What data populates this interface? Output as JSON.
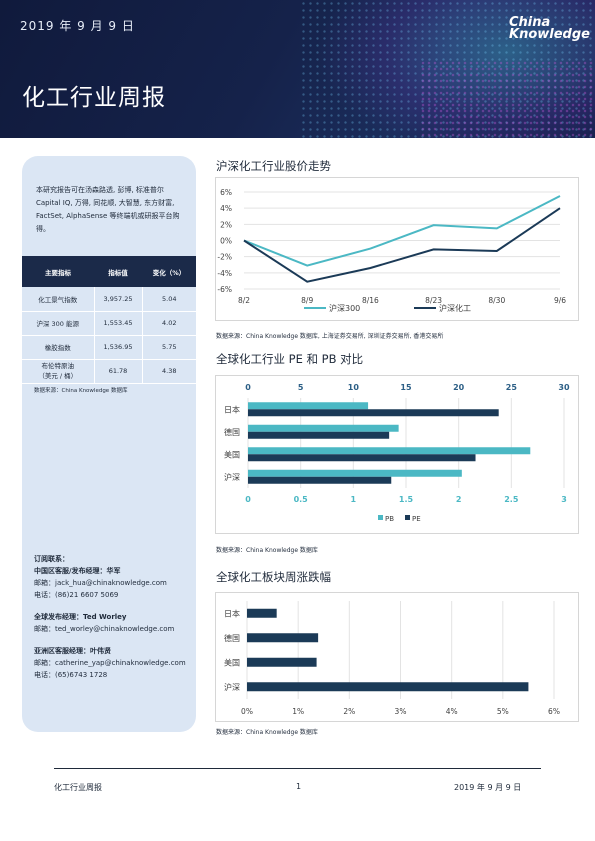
{
  "header": {
    "date": "2019 年 9 月 9 日",
    "title": "化工行业周报",
    "logo_line1": "China",
    "logo_line2": "Knowledge"
  },
  "sidebar": {
    "intro": "本研究报告可在汤森路透, 彭博, 标准普尔 Capital IQ, 万得, 同花顺, 大智慧, 东方财富, FactSet, AlphaSense 等终端机或研报平台购得。",
    "table": {
      "headers": [
        "主要指标",
        "指标值",
        "变化（%）"
      ],
      "rows": [
        {
          "name": "化工景气指数",
          "value": "3,957.25",
          "change": "5.04"
        },
        {
          "name": "沪深 300 能源",
          "value": "1,553.45",
          "change": "4.02"
        },
        {
          "name": "橡胶指数",
          "value": "1,536.95",
          "change": "5.75"
        },
        {
          "name": "布伦特原油",
          "name2": "（美元 / 桶）",
          "value": "61.78",
          "change": "4.38"
        }
      ]
    },
    "table_source": "数据来源：China Knowledge 数据库",
    "contacts": {
      "subscribe": "订阅联系：",
      "china_head": "中国区客服/发布经理：华军",
      "china_email": "邮箱：jack_hua@chinaknowledge.com",
      "china_phone": "电话：(86)21 6607 5069",
      "global_head": "全球发布经理：Ted Worley",
      "global_email": "邮箱：ted_worley@chinaknowledge.com",
      "asia_head": "亚洲区客服经理：叶伟贤",
      "asia_email": "邮箱：catherine_yap@chinaknowledge.com",
      "asia_phone": "电话：(65)6743 1728"
    }
  },
  "sections": {
    "s1_title": "沪深化工行业股价走势",
    "s1_source": "数据来源：China Knowledge 数据库, 上海证券交易所, 深圳证券交易所, 香港交易所",
    "s2_title": "全球化工行业 PE 和 PB 对比",
    "s2_source": "数据来源：China Knowledge 数据库",
    "s3_title": "全球化工板块周涨跌幅",
    "s3_source": "数据来源：China Knowledge 数据库"
  },
  "chart_data": [
    {
      "type": "line",
      "x": [
        "8/2",
        "8/9",
        "8/16",
        "8/23",
        "8/30",
        "9/6"
      ],
      "ylim": [
        -6,
        6
      ],
      "yticks": [
        "6%",
        "4%",
        "2%",
        "0%",
        "-2%",
        "-4%",
        "-6%"
      ],
      "series": [
        {
          "name": "沪深300",
          "color": "#4bb8c4",
          "values": [
            0,
            -3.1,
            -1.0,
            1.9,
            1.5,
            5.5
          ]
        },
        {
          "name": "沪深化工",
          "color": "#1b3a57",
          "values": [
            0,
            -5.1,
            -3.4,
            -1.1,
            -1.3,
            4.0
          ]
        }
      ],
      "legend": "bottom"
    },
    {
      "type": "bar",
      "orientation": "horizontal",
      "categories": [
        "日本",
        "德国",
        "美国",
        "沪深"
      ],
      "top_axis": {
        "range": [
          0,
          30
        ],
        "ticks": [
          "0",
          "5",
          "10",
          "15",
          "20",
          "25",
          "30"
        ]
      },
      "bottom_axis": {
        "range": [
          0,
          3
        ],
        "ticks": [
          "0",
          "0.5",
          "1",
          "1.5",
          "2",
          "2.5",
          "3"
        ]
      },
      "series": [
        {
          "name": "PB",
          "color": "#4bb8c4",
          "axis": "bottom",
          "values": [
            1.14,
            1.43,
            2.68,
            2.03
          ]
        },
        {
          "name": "PE",
          "color": "#1b3a57",
          "axis": "top",
          "values": [
            23.8,
            13.4,
            21.6,
            13.6
          ]
        }
      ],
      "legend": "bottom"
    },
    {
      "type": "bar",
      "orientation": "horizontal",
      "categories": [
        "日本",
        "德国",
        "美国",
        "沪深"
      ],
      "xlim": [
        0,
        6
      ],
      "xticks": [
        "0%",
        "1%",
        "2%",
        "3%",
        "4%",
        "5%",
        "6%"
      ],
      "series": [
        {
          "color": "#1b3a57",
          "values": [
            0.58,
            1.39,
            1.36,
            5.5
          ]
        }
      ]
    }
  ],
  "footer": {
    "left": "化工行业周报",
    "page": "1",
    "right": "2019 年 9 月 9 日"
  }
}
